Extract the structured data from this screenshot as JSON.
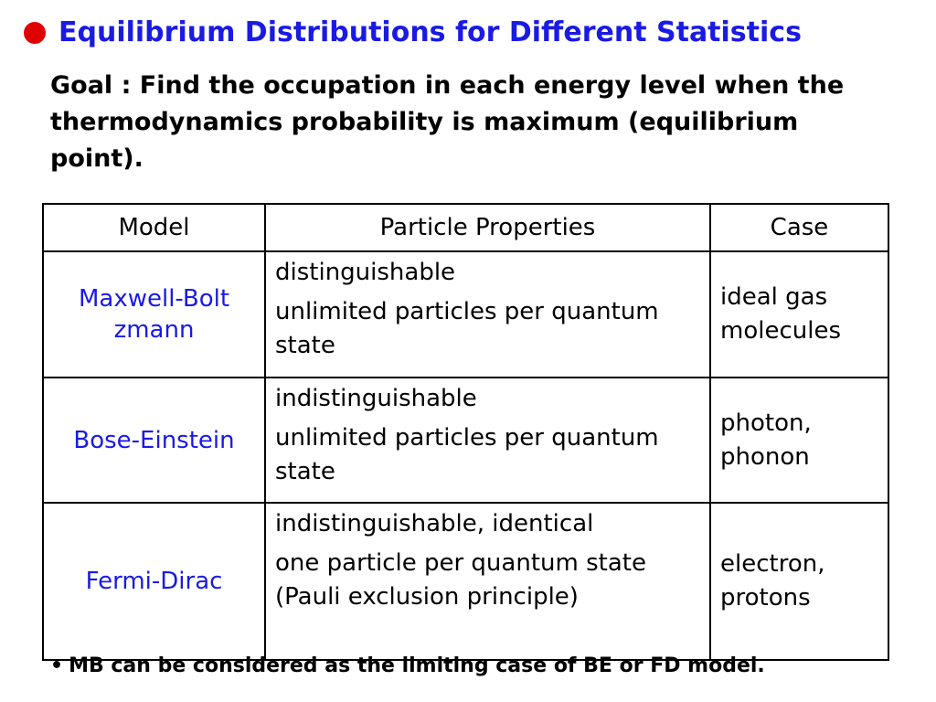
{
  "title": "Equilibrium Distributions for Different Statistics",
  "goal": "Goal : Find the occupation in each energy level when the thermodynamics probability is maximum (equilibrium point).",
  "table": {
    "headers": [
      "Model",
      "Particle Properties",
      "Case"
    ],
    "rows": [
      {
        "model": "Maxwell-Boltzmann",
        "property_1": "distinguishable",
        "property_2": "unlimited particles per quantum state",
        "case": "ideal gas molecules"
      },
      {
        "model": "Bose-Einstein",
        "property_1": "indistinguishable",
        "property_2": "unlimited particles per quantum state",
        "case": "photon, phonon"
      },
      {
        "model": "Fermi-Dirac",
        "property_1": "indistinguishable, identical",
        "property_2": "one particle per quantum state (Pauli exclusion principle)",
        "case": "electron, protons"
      }
    ]
  },
  "note": "MB can be considered as the limiting case of BE or FD model.",
  "colors": {
    "title": "#1a1ae6",
    "bullet": "#e00000",
    "model_text": "#1a1ae6"
  },
  "icons": {
    "title_bullet": "red-circle-bullet",
    "note_bullet": "small-dot-bullet"
  }
}
